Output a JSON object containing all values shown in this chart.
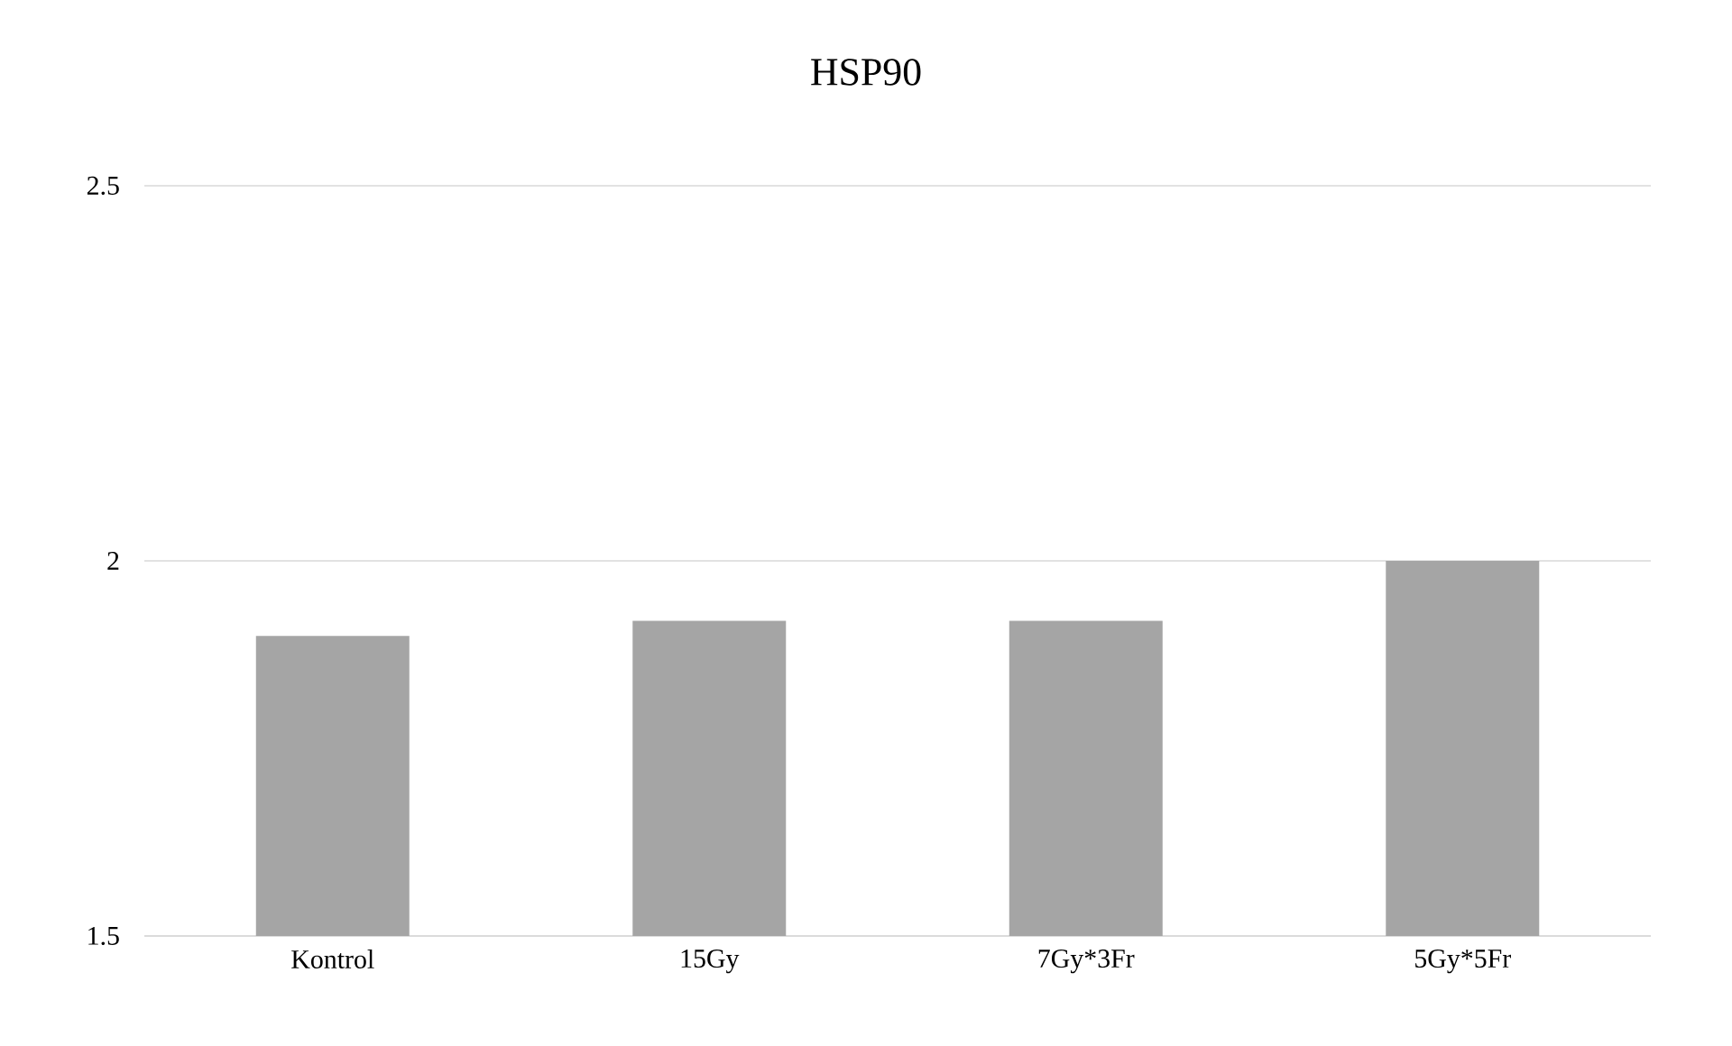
{
  "chart_data": {
    "type": "bar",
    "title": "HSP90",
    "categories": [
      "Kontrol",
      "15Gy",
      "7Gy*3Fr",
      "5Gy*5Fr"
    ],
    "values": [
      1.9,
      1.92,
      1.92,
      2.0
    ],
    "color": "#a5a5a5",
    "ylim": [
      1.5,
      2.5
    ],
    "yticks": [
      1.5,
      2,
      2.5
    ],
    "grid": "y"
  }
}
